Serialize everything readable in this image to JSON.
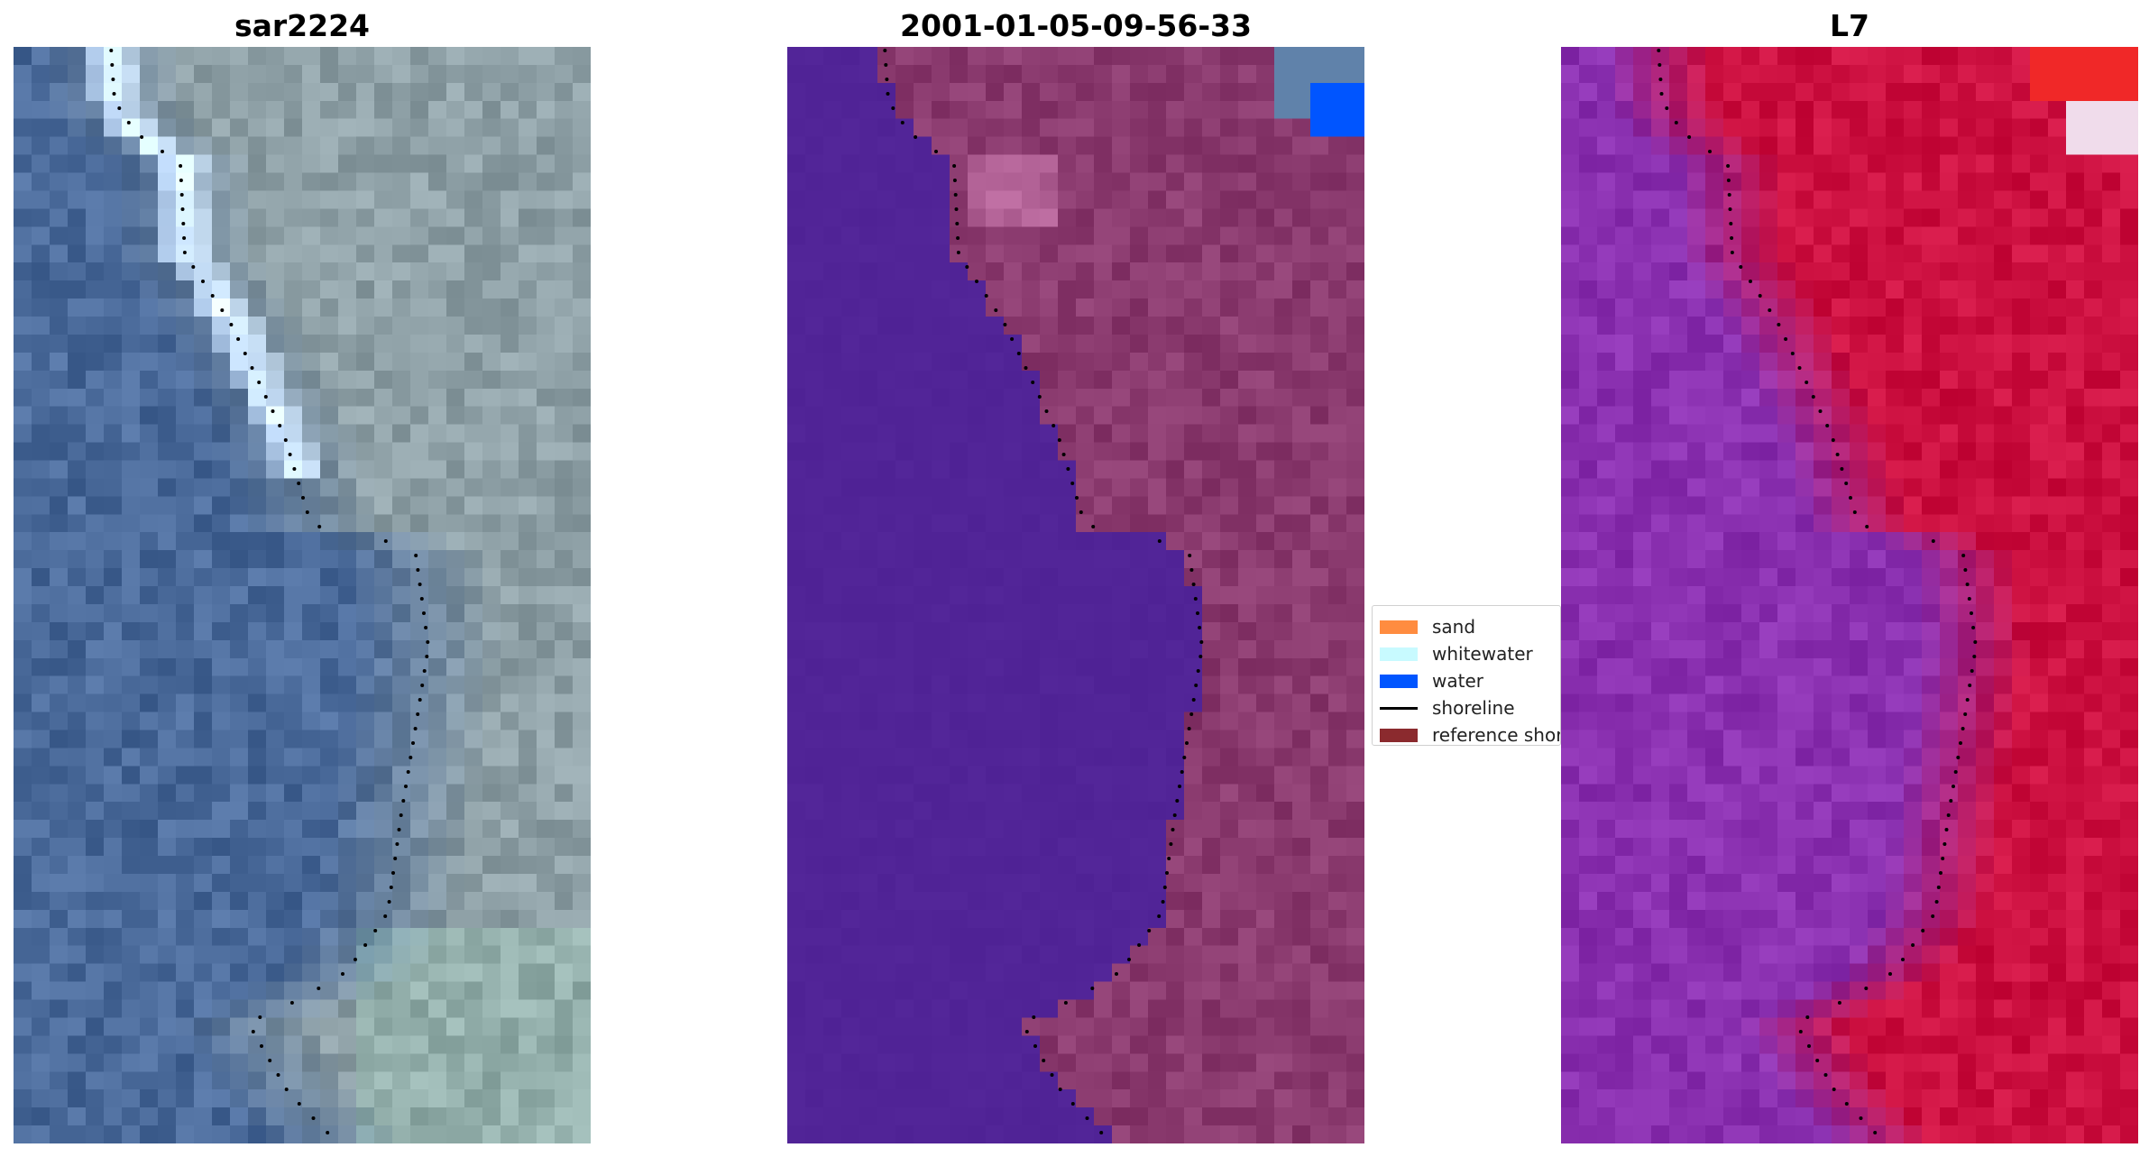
{
  "panels": [
    {
      "title": "sar2224",
      "left": 15
    },
    {
      "title": "2001-01-05-09-56-33",
      "left": 873
    },
    {
      "title": "L7",
      "left": 1731
    }
  ],
  "legend": {
    "items": [
      {
        "label": "sand",
        "color": "#ff8c40",
        "kind": "patch"
      },
      {
        "label": "whitewater",
        "color": "#c8faff",
        "kind": "patch"
      },
      {
        "label": "water",
        "color": "#0055ff",
        "kind": "patch"
      },
      {
        "label": "shoreline",
        "color": "#000000",
        "kind": "line"
      },
      {
        "label": "reference shoreline",
        "color": "#8b2a2e",
        "kind": "patch"
      }
    ]
  },
  "colors": {
    "rgb_water": "#4a6a9a",
    "rgb_land": "#8ea0a6",
    "class_water": "#512497",
    "class_land": "#8a3a6e",
    "index_water": "#8a30b0",
    "index_land": "#cc1040"
  }
}
